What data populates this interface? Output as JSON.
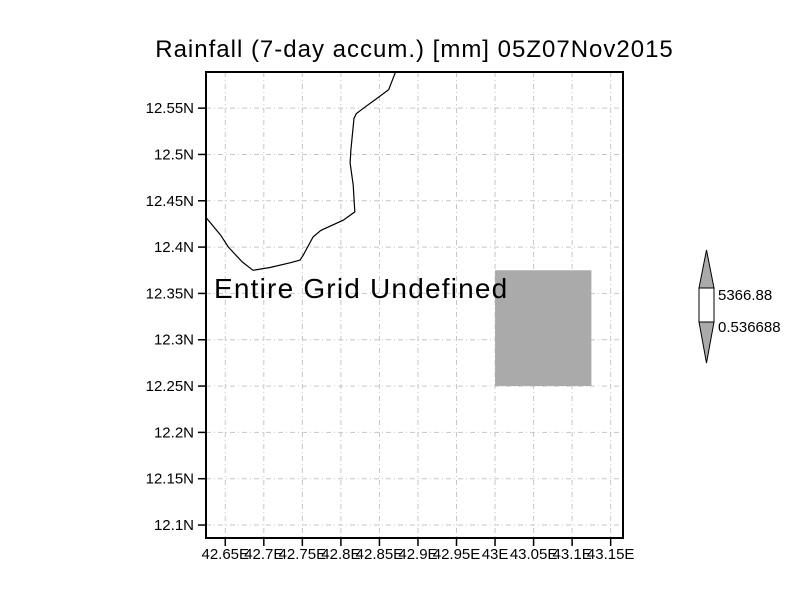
{
  "chart_data": {
    "type": "map",
    "title": "Rainfall (7-day accum.) [mm] 05Z07Nov2015",
    "message": "Entire Grid Undefined",
    "lon_range": [
      42.625,
      43.166
    ],
    "lat_range": [
      12.086,
      12.589
    ],
    "grid": true,
    "x_ticks": [
      {
        "value": 42.65,
        "label": "42.65E"
      },
      {
        "value": 42.7,
        "label": "42.7E"
      },
      {
        "value": 42.75,
        "label": "42.75E"
      },
      {
        "value": 42.8,
        "label": "42.8E"
      },
      {
        "value": 42.85,
        "label": "42.85E"
      },
      {
        "value": 42.9,
        "label": "42.9E"
      },
      {
        "value": 42.95,
        "label": "42.95E"
      },
      {
        "value": 43.0,
        "label": "43E"
      },
      {
        "value": 43.05,
        "label": "43.05E"
      },
      {
        "value": 43.1,
        "label": "43.1E"
      },
      {
        "value": 43.15,
        "label": "43.15E"
      }
    ],
    "y_ticks": [
      {
        "value": 12.55,
        "label": "12.55N"
      },
      {
        "value": 12.5,
        "label": "12.5N"
      },
      {
        "value": 12.45,
        "label": "12.45N"
      },
      {
        "value": 12.4,
        "label": "12.4N"
      },
      {
        "value": 12.35,
        "label": "12.35N"
      },
      {
        "value": 12.3,
        "label": "12.3N"
      },
      {
        "value": 12.25,
        "label": "12.25N"
      },
      {
        "value": 12.2,
        "label": "12.2N"
      },
      {
        "value": 12.15,
        "label": "12.15N"
      },
      {
        "value": 12.1,
        "label": "12.1N"
      }
    ],
    "shaded_region": {
      "lon_min": 43.0,
      "lon_max": 43.125,
      "lat_min": 12.25,
      "lat_max": 12.375
    },
    "coastline_lonlat": [
      [
        42.871,
        12.589
      ],
      [
        42.869,
        12.585
      ],
      [
        42.862,
        12.57
      ],
      [
        42.846,
        12.56
      ],
      [
        42.831,
        12.551
      ],
      [
        42.82,
        12.544
      ],
      [
        42.817,
        12.539
      ],
      [
        42.813,
        12.505
      ],
      [
        42.812,
        12.491
      ],
      [
        42.816,
        12.467
      ],
      [
        42.818,
        12.438
      ],
      [
        42.803,
        12.429
      ],
      [
        42.774,
        12.418
      ],
      [
        42.764,
        12.411
      ],
      [
        42.751,
        12.391
      ],
      [
        42.747,
        12.386
      ],
      [
        42.734,
        12.383
      ],
      [
        42.708,
        12.378
      ],
      [
        42.686,
        12.375
      ],
      [
        42.672,
        12.384
      ],
      [
        42.654,
        12.4
      ],
      [
        42.644,
        12.413
      ],
      [
        42.625,
        12.432
      ]
    ],
    "colorbar": {
      "max_label": "5366.88",
      "min_label": "0.536688",
      "top_color": "#aaaaaa",
      "mid_color": "#ffffff",
      "bottom_color": "#aaaaaa"
    },
    "colors": {
      "background": "#ffffff",
      "frame": "#000000",
      "grid": "#c6c6c6",
      "coastline": "#000000",
      "shading": "#aaaaaa",
      "message_text": "#999999",
      "tick_text": "#000000"
    }
  }
}
